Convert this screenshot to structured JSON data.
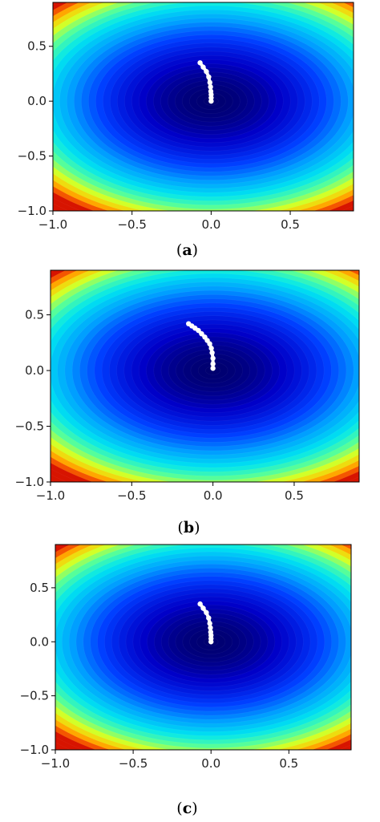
{
  "chart_data": [
    {
      "type": "contour",
      "caption": "(a)",
      "caption_letter": "a",
      "xlim": [
        -1.0,
        0.9
      ],
      "ylim": [
        -1.0,
        0.9
      ],
      "xticks": [
        -1.0,
        -0.5,
        0.0,
        0.5
      ],
      "yticks": [
        -1.0,
        -0.5,
        0.0,
        0.5
      ],
      "xtick_labels": [
        "−1.0",
        "−0.5",
        "0.0",
        "0.5"
      ],
      "ytick_labels": [
        "−1.0",
        "−0.5",
        "0.0",
        "0.5"
      ],
      "colormap": "jet",
      "grid": false,
      "trajectory": {
        "x": [
          -0.07,
          -0.05,
          -0.03,
          -0.015,
          -0.008,
          -0.004,
          -0.002,
          0.0,
          0.0,
          0.0
        ],
        "y": [
          0.35,
          0.31,
          0.27,
          0.22,
          0.17,
          0.13,
          0.09,
          0.06,
          0.03,
          0.0
        ]
      }
    },
    {
      "type": "contour",
      "caption": "(b)",
      "caption_letter": "b",
      "xlim": [
        -1.0,
        0.9
      ],
      "ylim": [
        -1.0,
        0.9
      ],
      "xticks": [
        -1.0,
        -0.5,
        0.0,
        0.5
      ],
      "yticks": [
        -1.0,
        -0.5,
        0.0,
        0.5
      ],
      "xtick_labels": [
        "−1.0",
        "−0.5",
        "0.0",
        "0.5"
      ],
      "ytick_labels": [
        "−1.0",
        "−0.5",
        "0.0",
        "0.5"
      ],
      "colormap": "jet",
      "grid": false,
      "trajectory": {
        "x": [
          -0.15,
          -0.13,
          -0.11,
          -0.09,
          -0.07,
          -0.05,
          -0.035,
          -0.02,
          -0.01,
          -0.005,
          0.0,
          0.0,
          0.0
        ],
        "y": [
          0.42,
          0.4,
          0.38,
          0.36,
          0.33,
          0.3,
          0.27,
          0.24,
          0.2,
          0.16,
          0.11,
          0.06,
          0.02
        ]
      }
    },
    {
      "type": "contour",
      "caption": "(c)",
      "caption_letter": "c",
      "xlim": [
        -1.0,
        0.9
      ],
      "ylim": [
        -1.0,
        0.9
      ],
      "xticks": [
        -1.0,
        -0.5,
        0.0,
        0.5
      ],
      "yticks": [
        -1.0,
        -0.5,
        0.0,
        0.5
      ],
      "xtick_labels": [
        "−1.0",
        "−0.5",
        "0.0",
        "0.5"
      ],
      "ytick_labels": [
        "−1.0",
        "−0.5",
        "0.0",
        "0.5"
      ],
      "colormap": "jet",
      "grid": false,
      "trajectory": {
        "x": [
          -0.07,
          -0.05,
          -0.03,
          -0.015,
          -0.008,
          -0.004,
          -0.002,
          0.0,
          0.0,
          0.0
        ],
        "y": [
          0.35,
          0.31,
          0.27,
          0.22,
          0.17,
          0.13,
          0.09,
          0.06,
          0.03,
          0.0
        ]
      }
    }
  ]
}
